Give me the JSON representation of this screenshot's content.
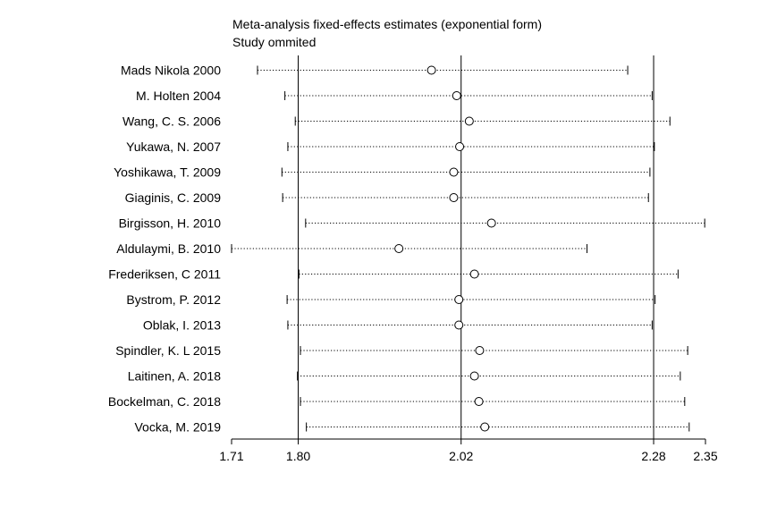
{
  "chart_data": {
    "type": "forest",
    "title": "Meta-analysis fixed-effects estimates (exponential form)",
    "subtitle": "Study ommited",
    "xlim": [
      1.71,
      2.35
    ],
    "ticks": [
      {
        "value": 1.71,
        "label": "1.71"
      },
      {
        "value": 1.8,
        "label": "1.80"
      },
      {
        "value": 2.02,
        "label": "2.02"
      },
      {
        "value": 2.28,
        "label": "2.28"
      },
      {
        "value": 2.35,
        "label": "2.35"
      }
    ],
    "reference_lines": [
      1.8,
      2.02,
      2.28
    ],
    "studies": [
      {
        "label": "Mads Nikola 2000",
        "estimate": 1.98,
        "lower": 1.745,
        "upper": 2.245
      },
      {
        "label": "M. Holten  2004",
        "estimate": 2.014,
        "lower": 1.782,
        "upper": 2.278
      },
      {
        "label": "Wang, C. S.  2006",
        "estimate": 2.031,
        "lower": 1.796,
        "upper": 2.302
      },
      {
        "label": "Yukawa, N. 2007",
        "estimate": 2.018,
        "lower": 1.786,
        "upper": 2.281
      },
      {
        "label": "Yoshikawa, T. 2009",
        "estimate": 2.01,
        "lower": 1.778,
        "upper": 2.275
      },
      {
        "label": "Giaginis, C. 2009",
        "estimate": 2.01,
        "lower": 1.779,
        "upper": 2.273
      },
      {
        "label": "Birgisson, H. 2010",
        "estimate": 2.061,
        "lower": 1.81,
        "upper": 2.349
      },
      {
        "label": "Aldulaymi, B. 2010",
        "estimate": 1.936,
        "lower": 1.71,
        "upper": 2.19
      },
      {
        "label": "Frederiksen, C 2011",
        "estimate": 2.038,
        "lower": 1.801,
        "upper": 2.313
      },
      {
        "label": "Bystrom, P. 2012",
        "estimate": 2.017,
        "lower": 1.785,
        "upper": 2.282
      },
      {
        "label": "Oblak, I. 2013",
        "estimate": 2.017,
        "lower": 1.786,
        "upper": 2.278
      },
      {
        "label": "Spindler, K. L 2015",
        "estimate": 2.045,
        "lower": 1.803,
        "upper": 2.326
      },
      {
        "label": "Laitinen, A. 2018",
        "estimate": 2.038,
        "lower": 1.799,
        "upper": 2.316
      },
      {
        "label": "Bockelman, C. 2018",
        "estimate": 2.044,
        "lower": 1.803,
        "upper": 2.322
      },
      {
        "label": "Vocka, M. 2019",
        "estimate": 2.052,
        "lower": 1.811,
        "upper": 2.328
      }
    ]
  }
}
